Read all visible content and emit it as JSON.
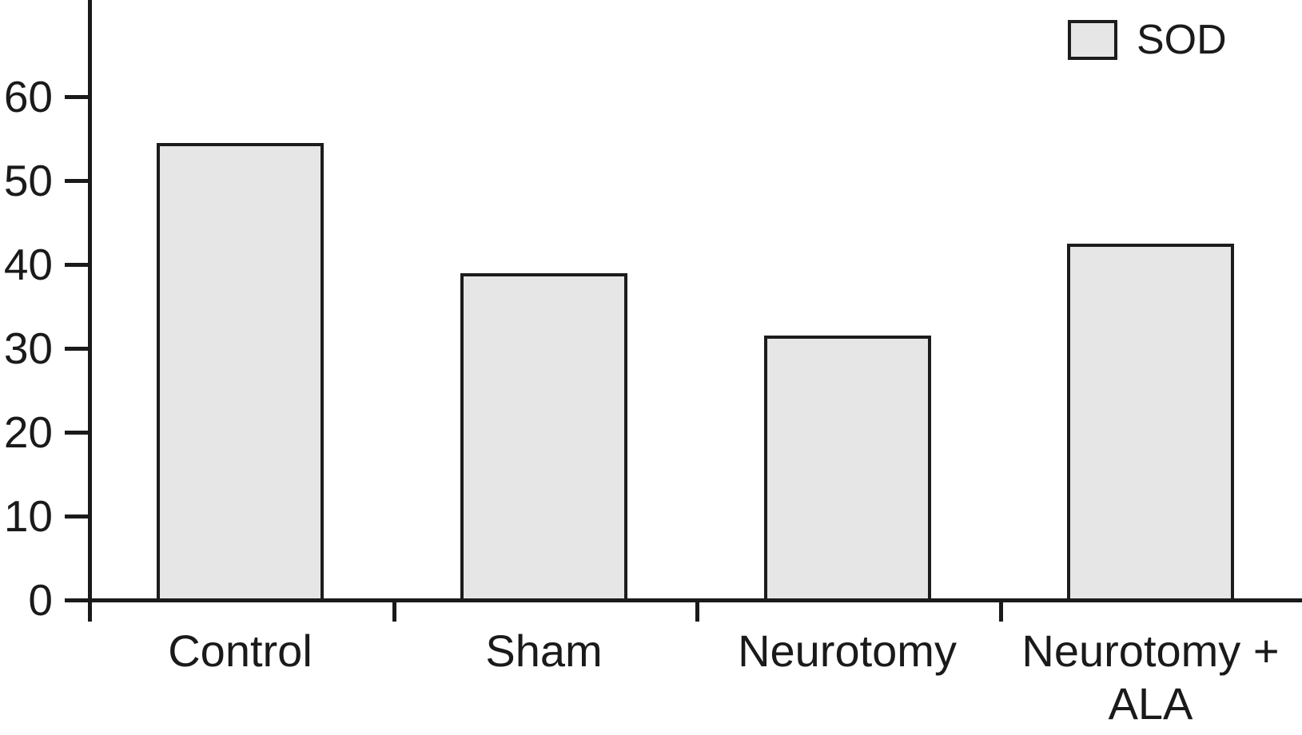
{
  "chart_data": {
    "type": "bar",
    "title": "",
    "xlabel": "",
    "ylabel": "",
    "categories": [
      "Control",
      "Sham",
      "Neurotomy",
      "Neurotomy + ALA"
    ],
    "series": [
      {
        "name": "SOD",
        "values": [
          54.5,
          39,
          31.5,
          42.5
        ]
      }
    ],
    "yticks": [
      0,
      10,
      20,
      30,
      40,
      50,
      60
    ],
    "ylim": [
      0,
      71
    ],
    "grid": false,
    "legend_position": "top-right",
    "bar_fill_color": "#e6e6e6",
    "bar_border_color": "#1c1c1c",
    "axis_color": "#1a1a1a",
    "text_color": "#1a1a1a"
  },
  "legend": {
    "label": "SOD"
  }
}
